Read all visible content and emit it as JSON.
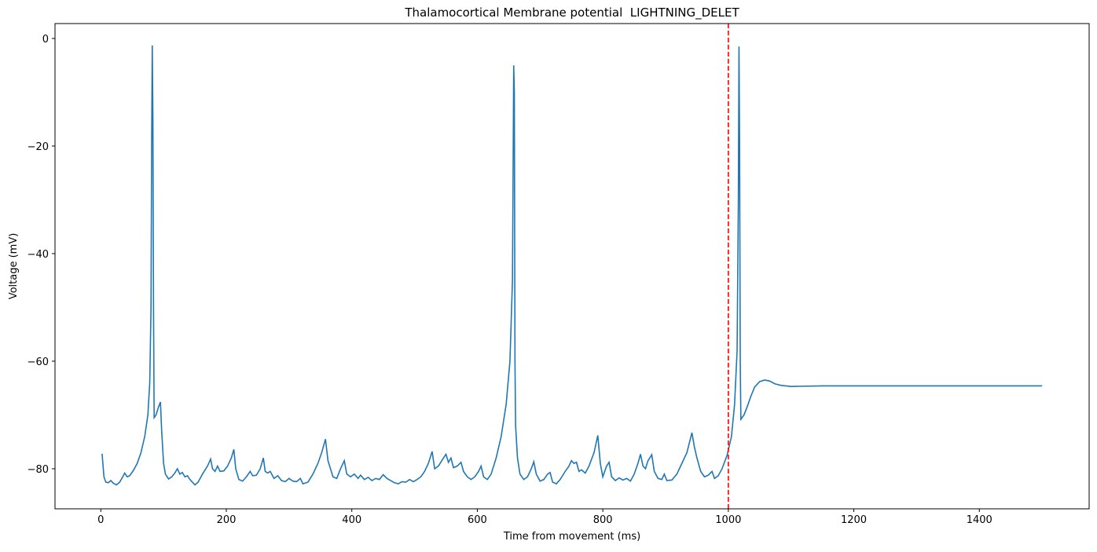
{
  "chart_data": {
    "type": "line",
    "title": "Thalamocortical Membrane potential  LIGHTNING_DELET",
    "xlabel": "Time from movement (ms)",
    "ylabel": "Voltage (mV)",
    "color": "#1f77b4",
    "x": [
      2,
      5,
      8,
      12,
      16,
      20,
      25,
      30,
      35,
      38,
      42,
      46,
      52,
      58,
      64,
      70,
      75,
      78,
      80,
      81,
      82,
      83,
      84,
      85,
      88,
      92,
      95,
      97,
      100,
      103,
      108,
      113,
      118,
      122,
      126,
      130,
      134,
      138,
      142,
      146,
      150,
      155,
      162,
      170,
      175,
      178,
      182,
      186,
      190,
      196,
      202,
      208,
      212,
      215,
      220,
      226,
      232,
      238,
      242,
      248,
      254,
      259,
      262,
      266,
      270,
      276,
      282,
      288,
      294,
      300,
      306,
      312,
      318,
      322,
      330,
      338,
      346,
      352,
      358,
      362,
      366,
      370,
      376,
      382,
      388,
      392,
      398,
      404,
      410,
      414,
      420,
      426,
      432,
      438,
      444,
      450,
      456,
      462,
      468,
      474,
      480,
      486,
      492,
      498,
      504,
      510,
      516,
      522,
      528,
      532,
      538,
      546,
      550,
      554,
      558,
      562,
      568,
      574,
      578,
      584,
      590,
      596,
      602,
      606,
      610,
      616,
      622,
      630,
      638,
      646,
      652,
      656,
      658,
      659,
      660,
      661,
      664,
      668,
      674,
      680,
      686,
      690,
      694,
      700,
      706,
      712,
      716,
      720,
      726,
      732,
      740,
      746,
      750,
      754,
      758,
      762,
      766,
      772,
      778,
      786,
      792,
      796,
      800,
      806,
      810,
      814,
      820,
      826,
      832,
      838,
      844,
      850,
      856,
      860,
      864,
      868,
      872,
      878,
      882,
      888,
      894,
      898,
      902,
      910,
      918,
      926,
      934,
      942,
      946,
      950,
      956,
      962,
      968,
      974,
      978,
      984,
      990,
      998,
      1005,
      1010,
      1014,
      1016,
      1017,
      1018,
      1019,
      1020,
      1025,
      1030,
      1036,
      1042,
      1050,
      1058,
      1066,
      1074,
      1084,
      1100,
      1150,
      1200,
      1300,
      1400,
      1500
    ],
    "values": [
      -77.2,
      -81.5,
      -82.5,
      -82.6,
      -82.2,
      -82.7,
      -83,
      -82.5,
      -81.5,
      -80.8,
      -81.5,
      -81.3,
      -80.3,
      -79,
      -77,
      -74,
      -70,
      -64,
      -50,
      -20,
      -1.3,
      -15,
      -50,
      -70.5,
      -70,
      -68.5,
      -67.6,
      -73,
      -79,
      -81,
      -81.9,
      -81.5,
      -80.8,
      -80,
      -81,
      -80.7,
      -81.5,
      -81.3,
      -82,
      -82.5,
      -83,
      -82.5,
      -81,
      -79.5,
      -78.2,
      -80,
      -80.5,
      -79.5,
      -80.5,
      -80.4,
      -79.5,
      -78,
      -76.4,
      -80,
      -82,
      -82.3,
      -81.5,
      -80.5,
      -81.3,
      -81.2,
      -80,
      -78,
      -80.5,
      -80.8,
      -80.5,
      -81.8,
      -81.3,
      -82.2,
      -82.4,
      -81.8,
      -82.3,
      -82.4,
      -81.8,
      -82.8,
      -82.5,
      -81,
      -79,
      -77,
      -74.5,
      -78.5,
      -80,
      -81.5,
      -81.8,
      -80,
      -78.5,
      -81,
      -81.5,
      -81,
      -81.8,
      -81.2,
      -82,
      -81.6,
      -82.2,
      -81.8,
      -82,
      -81.1,
      -81.8,
      -82.2,
      -82.6,
      -82.8,
      -82.4,
      -82.5,
      -82,
      -82.4,
      -82,
      -81.5,
      -80.5,
      -79,
      -76.8,
      -80,
      -79.5,
      -78,
      -77.3,
      -78.8,
      -78,
      -79.8,
      -79.5,
      -78.8,
      -80.5,
      -81.5,
      -82,
      -81.5,
      -80.5,
      -79.5,
      -81.5,
      -82,
      -81,
      -78,
      -74,
      -68,
      -60,
      -45,
      -5,
      -10,
      -60,
      -72,
      -78,
      -81,
      -82,
      -81.5,
      -80,
      -78.7,
      -81,
      -82.3,
      -82,
      -81,
      -80.7,
      -82.5,
      -82.8,
      -82,
      -80.5,
      -79.5,
      -78.5,
      -79,
      -78.8,
      -80.5,
      -80.2,
      -80.8,
      -79.5,
      -77,
      -73.8,
      -79,
      -81.5,
      -79.5,
      -78.8,
      -81.5,
      -82.2,
      -81.7,
      -82.1,
      -81.8,
      -82.3,
      -81,
      -79,
      -77.3,
      -79.5,
      -80,
      -78.5,
      -77.4,
      -80.5,
      -81.8,
      -82,
      -81,
      -82.2,
      -82.1,
      -81,
      -79,
      -77,
      -73.3,
      -76,
      -78,
      -80.5,
      -81.5,
      -81.2,
      -80.5,
      -81.8,
      -81.3,
      -80,
      -77.5,
      -74,
      -68,
      -58,
      -30,
      -1.5,
      -20,
      -60,
      -70.8,
      -70,
      -68.5,
      -66.5,
      -64.8,
      -63.8,
      -63.5,
      -63.7,
      -64.2,
      -64.5,
      -64.7,
      -64.6,
      -64.6,
      -64.6,
      -64.6,
      -64.6
    ],
    "xlim": [
      -73,
      1575
    ],
    "ylim": [
      -87.45,
      2.77
    ],
    "xticks": [
      0,
      200,
      400,
      600,
      800,
      1000,
      1200,
      1400
    ],
    "yticks": [
      {
        "value": -80,
        "label": "−80"
      },
      {
        "value": -60,
        "label": "−60"
      },
      {
        "value": -40,
        "label": "−40"
      },
      {
        "value": -20,
        "label": "−20"
      },
      0
    ],
    "vlines": [
      {
        "x": 1000,
        "color": "red",
        "style": "dashed"
      }
    ]
  }
}
